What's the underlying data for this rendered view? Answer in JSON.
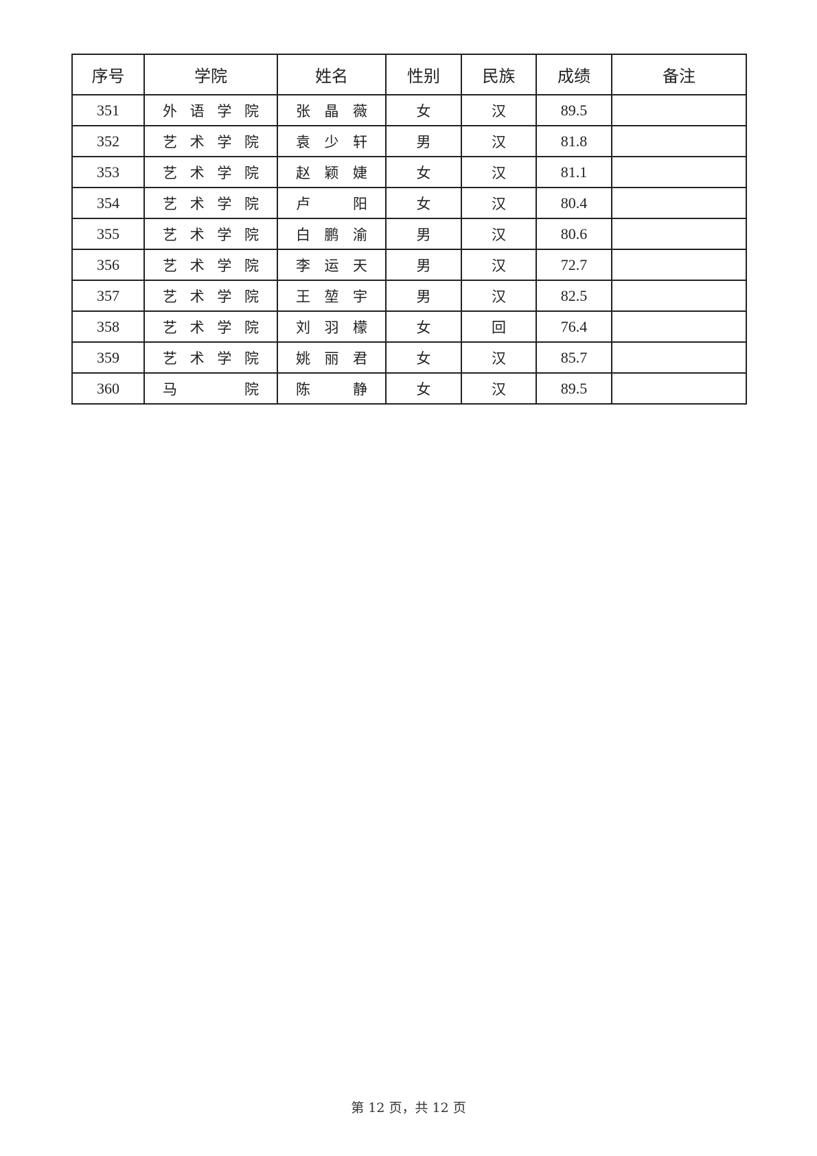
{
  "table": {
    "headers": [
      "序号",
      "学院",
      "姓名",
      "性别",
      "民族",
      "成绩",
      "备注"
    ],
    "rows": [
      {
        "no": "351",
        "college": [
          "外",
          "语",
          "学",
          "院"
        ],
        "name": [
          "张",
          "晶",
          "薇"
        ],
        "gender": "女",
        "ethnicity": "汉",
        "score": "89.5",
        "note": ""
      },
      {
        "no": "352",
        "college": [
          "艺",
          "术",
          "学",
          "院"
        ],
        "name": [
          "袁",
          "少",
          "轩"
        ],
        "gender": "男",
        "ethnicity": "汉",
        "score": "81.8",
        "note": ""
      },
      {
        "no": "353",
        "college": [
          "艺",
          "术",
          "学",
          "院"
        ],
        "name": [
          "赵",
          "颖",
          "婕"
        ],
        "gender": "女",
        "ethnicity": "汉",
        "score": "81.1",
        "note": ""
      },
      {
        "no": "354",
        "college": [
          "艺",
          "术",
          "学",
          "院"
        ],
        "name": [
          "卢",
          "阳"
        ],
        "gender": "女",
        "ethnicity": "汉",
        "score": "80.4",
        "note": ""
      },
      {
        "no": "355",
        "college": [
          "艺",
          "术",
          "学",
          "院"
        ],
        "name": [
          "白",
          "鹏",
          "渝"
        ],
        "gender": "男",
        "ethnicity": "汉",
        "score": "80.6",
        "note": ""
      },
      {
        "no": "356",
        "college": [
          "艺",
          "术",
          "学",
          "院"
        ],
        "name": [
          "李",
          "运",
          "天"
        ],
        "gender": "男",
        "ethnicity": "汉",
        "score": "72.7",
        "note": ""
      },
      {
        "no": "357",
        "college": [
          "艺",
          "术",
          "学",
          "院"
        ],
        "name": [
          "王",
          "堃",
          "宇"
        ],
        "gender": "男",
        "ethnicity": "汉",
        "score": "82.5",
        "note": ""
      },
      {
        "no": "358",
        "college": [
          "艺",
          "术",
          "学",
          "院"
        ],
        "name": [
          "刘",
          "羽",
          "檬"
        ],
        "gender": "女",
        "ethnicity": "回",
        "score": "76.4",
        "note": ""
      },
      {
        "no": "359",
        "college": [
          "艺",
          "术",
          "学",
          "院"
        ],
        "name": [
          "姚",
          "丽",
          "君"
        ],
        "gender": "女",
        "ethnicity": "汉",
        "score": "85.7",
        "note": ""
      },
      {
        "no": "360",
        "college": [
          "马",
          "院"
        ],
        "name": [
          "陈",
          "静"
        ],
        "gender": "女",
        "ethnicity": "汉",
        "score": "89.5",
        "note": ""
      }
    ]
  },
  "footer": "第 12 页，共 12 页"
}
